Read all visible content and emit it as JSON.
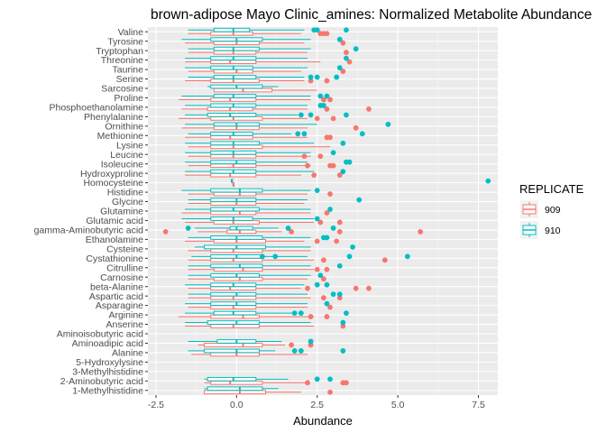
{
  "chart_data": {
    "type": "boxplot",
    "orientation": "horizontal",
    "title": "brown-adipose Mayo Clinic_amines: Normalized Metabolite Abundance",
    "xlabel": "Abundance",
    "ylabel": "",
    "xlim": [
      -2.75,
      8.1
    ],
    "xticks": [
      -2.5,
      0.0,
      2.5,
      5.0,
      7.5
    ],
    "xtick_labels": [
      "-2.5",
      "0.0",
      "2.5",
      "5.0",
      "7.5"
    ],
    "grid": true,
    "legend": {
      "title": "REPLICATE",
      "position": "right",
      "entries": [
        {
          "name": "909",
          "color": "#F8766D"
        },
        {
          "name": "910",
          "color": "#00BFC4"
        }
      ]
    },
    "categories": [
      "Valine",
      "Tyrosine",
      "Tryptophan",
      "Threonine",
      "Taurine",
      "Serine",
      "Sarcosine",
      "Proline",
      "Phosphoethanolamine",
      "Phenylalanine",
      "Ornithine",
      "Methionine",
      "Lysine",
      "Leucine",
      "Isoleucine",
      "Hydroxyproline",
      "Homocysteine",
      "Histidine",
      "Glycine",
      "Glutamine",
      "Glutamic acid",
      "gamma-Aminobutyric acid",
      "Ethanolamine",
      "Cysteine",
      "Cystathionine",
      "Citrulline",
      "Carnosine",
      "beta-Alanine",
      "Aspartic acid",
      "Asparagine",
      "Arginine",
      "Anserine",
      "Aminoisobutyric acid",
      "Aminoadipic acid",
      "Alanine",
      "5-Hydroxylysine",
      "3-Methylhistidine",
      "2-Aminobutyric acid",
      "1-Methylhistidine"
    ],
    "series": [
      {
        "name": "909",
        "color": "#F8766D",
        "boxes": [
          [
            -1.5,
            -0.8,
            -0.1,
            0.5,
            2.0
          ],
          [
            -1.6,
            -0.7,
            0.0,
            0.7,
            2.1
          ],
          [
            -1.5,
            -0.7,
            -0.1,
            0.6,
            2.2
          ],
          [
            -1.6,
            -0.8,
            -0.2,
            0.6,
            2.6
          ],
          [
            -1.5,
            -0.7,
            0.0,
            0.5,
            2.0
          ],
          [
            -1.6,
            -0.8,
            -0.1,
            0.7,
            2.1
          ],
          [
            -0.7,
            -0.7,
            0.2,
            1.1,
            2.5
          ],
          [
            -1.8,
            -0.8,
            -0.2,
            0.6,
            2.3
          ],
          [
            -1.7,
            -0.9,
            -0.2,
            0.5,
            2.2
          ],
          [
            -1.8,
            -0.8,
            -0.1,
            0.8,
            2.2
          ],
          [
            -1.7,
            -0.7,
            0.0,
            0.7,
            2.2
          ],
          [
            -1.6,
            -0.8,
            -0.2,
            0.5,
            2.2
          ],
          [
            -1.5,
            -0.8,
            -0.1,
            0.8,
            2.9
          ],
          [
            -1.5,
            -0.8,
            -0.1,
            0.6,
            2.3
          ],
          [
            -1.5,
            -0.8,
            -0.1,
            0.6,
            2.3
          ],
          [
            -1.6,
            -0.8,
            -0.2,
            0.6,
            2.0
          ],
          [
            -0.1,
            -0.1,
            -0.1,
            -0.1,
            -0.1
          ],
          [
            -1.5,
            -0.7,
            0.1,
            0.6,
            2.2
          ],
          [
            -1.5,
            -0.8,
            0.0,
            0.6,
            2.1
          ],
          [
            -1.7,
            -0.8,
            0.1,
            0.6,
            2.3
          ],
          [
            -1.6,
            -0.7,
            -0.1,
            0.7,
            2.4
          ],
          [
            -1.2,
            -0.3,
            0.1,
            0.6,
            1.4
          ],
          [
            -1.6,
            -0.7,
            0.0,
            0.9,
            2.1
          ],
          [
            -1.5,
            -0.8,
            -0.1,
            0.8,
            2.3
          ],
          [
            -1.5,
            -0.8,
            -0.1,
            0.8,
            2.4
          ],
          [
            -1.5,
            -0.7,
            0.2,
            0.8,
            2.4
          ],
          [
            -1.5,
            -0.7,
            0.1,
            0.8,
            2.2
          ],
          [
            -1.5,
            -0.8,
            -0.2,
            0.6,
            2.0
          ],
          [
            -1.5,
            -0.8,
            -0.1,
            0.6,
            2.3
          ],
          [
            -1.5,
            -0.8,
            -0.1,
            0.6,
            2.2
          ],
          [
            -1.8,
            -0.8,
            0.2,
            0.7,
            2.4
          ],
          [
            -1.6,
            -0.8,
            -0.1,
            0.7,
            2.4
          ],
          [
            null,
            null,
            null,
            null,
            null
          ],
          [
            -1.2,
            -1.0,
            0.2,
            0.8,
            1.5
          ],
          [
            -1.4,
            -0.8,
            0.0,
            0.7,
            2.2
          ],
          [
            null,
            null,
            null,
            null,
            null
          ],
          [
            null,
            null,
            null,
            null,
            null
          ],
          [
            -1.0,
            -0.8,
            -0.2,
            0.8,
            2.2
          ],
          [
            -1.0,
            -1.0,
            0.1,
            0.9,
            2.0
          ]
        ],
        "outliers": [
          [
            2.8,
            2.7,
            2.6
          ],
          [
            3.3
          ],
          [
            3.4
          ],
          [
            3.5
          ],
          [
            3.3
          ],
          [
            2.3,
            2.8
          ],
          [],
          [
            2.9,
            2.7
          ],
          [
            4.1,
            2.8
          ],
          [
            2.5,
            3.0
          ],
          [
            3.7
          ],
          [
            2.8,
            2.9
          ],
          [],
          [
            2.1,
            2.6
          ],
          [
            2.9,
            3.0,
            2.2
          ],
          [
            3.2,
            2.4
          ],
          [],
          [
            2.9
          ],
          [],
          [
            2.8
          ],
          [
            3.2,
            2.6
          ],
          [
            5.7,
            3.2,
            1.7,
            -2.2
          ],
          [
            3.1,
            2.5
          ],
          [],
          [
            4.6,
            2.7
          ],
          [
            2.8,
            2.5
          ],
          [
            2.7
          ],
          [
            3.7,
            4.1,
            2.2
          ],
          [
            3.2,
            2.7
          ],
          [
            2.9
          ],
          [
            2.8,
            2.3
          ],
          [
            3.3
          ],
          [],
          [
            2.3,
            1.7
          ],
          [],
          [],
          [],
          [
            3.4,
            3.3,
            2.2
          ],
          [
            2.9
          ]
        ]
      },
      {
        "name": "910",
        "color": "#00BFC4",
        "boxes": [
          [
            -1.5,
            -0.7,
            -0.1,
            0.4,
            2.1
          ],
          [
            -1.7,
            -0.8,
            0.0,
            0.8,
            2.3
          ],
          [
            -1.5,
            -0.7,
            -0.1,
            0.7,
            2.3
          ],
          [
            -1.6,
            -0.8,
            -0.1,
            0.6,
            2.2
          ],
          [
            -1.6,
            -0.8,
            -0.1,
            0.5,
            2.2
          ],
          [
            -1.5,
            -0.7,
            -0.1,
            0.6,
            2.1
          ],
          [
            -0.9,
            -0.8,
            0.0,
            0.8,
            1.3
          ],
          [
            -1.7,
            -0.7,
            -0.1,
            0.6,
            2.3
          ],
          [
            -1.6,
            -0.8,
            -0.1,
            0.6,
            2.2
          ],
          [
            -1.6,
            -0.9,
            -0.2,
            0.6,
            1.9
          ],
          [
            -1.6,
            -0.7,
            0.0,
            0.7,
            2.5
          ],
          [
            -1.5,
            -0.8,
            -0.1,
            0.5,
            1.7
          ],
          [
            -1.6,
            -0.8,
            -0.1,
            0.7,
            2.4
          ],
          [
            -1.6,
            -0.8,
            -0.1,
            0.6,
            2.3
          ],
          [
            -1.6,
            -0.8,
            0.0,
            0.6,
            2.2
          ],
          [
            -1.6,
            -0.8,
            -0.1,
            0.6,
            2.4
          ],
          [
            -0.15,
            -0.15,
            -0.15,
            -0.15,
            -0.15
          ],
          [
            -1.7,
            -0.8,
            0.1,
            0.8,
            2.3
          ],
          [
            -1.5,
            -0.8,
            0.0,
            0.6,
            2.2
          ],
          [
            -1.6,
            -0.8,
            -0.1,
            0.7,
            2.3
          ],
          [
            -1.7,
            -0.8,
            -0.1,
            0.5,
            2.4
          ],
          [
            -1.3,
            -0.2,
            0.0,
            0.5,
            1.3
          ],
          [
            -1.5,
            -0.8,
            0.0,
            0.8,
            2.3
          ],
          [
            -1.3,
            -1.0,
            0.0,
            0.9,
            2.3
          ],
          [
            -1.4,
            -0.8,
            0.0,
            0.8,
            2.2
          ],
          [
            -1.5,
            -0.8,
            0.1,
            0.8,
            2.3
          ],
          [
            -1.5,
            -0.8,
            0.0,
            0.7,
            2.3
          ],
          [
            -1.6,
            -0.8,
            -0.1,
            0.6,
            2.1
          ],
          [
            -1.5,
            -0.8,
            0.0,
            0.6,
            2.2
          ],
          [
            -1.6,
            -0.8,
            0.0,
            0.6,
            2.2
          ],
          [
            -1.6,
            -0.7,
            -0.1,
            0.6,
            1.8
          ],
          [
            -1.6,
            -0.9,
            0.0,
            0.7,
            2.3
          ],
          [
            null,
            null,
            null,
            null,
            null
          ],
          [
            -1.5,
            -0.6,
            0.0,
            0.6,
            1.4
          ],
          [
            -1.5,
            -1.0,
            0.0,
            0.7,
            1.2
          ],
          [
            null,
            null,
            null,
            null,
            null
          ],
          [
            null,
            null,
            null,
            null,
            null
          ],
          [
            -1.0,
            -0.9,
            -0.1,
            0.6,
            1.6
          ],
          [
            -1.0,
            -0.9,
            0.1,
            0.8,
            1.3
          ]
        ],
        "outliers": [
          [
            3.4,
            2.5,
            2.4
          ],
          [
            3.2
          ],
          [
            3.7
          ],
          [
            3.4
          ],
          [
            3.2
          ],
          [
            3.1,
            2.5,
            2.3
          ],
          [],
          [
            2.6,
            2.8
          ],
          [
            2.7,
            2.6
          ],
          [
            3.4,
            2.3,
            2.0
          ],
          [
            4.7
          ],
          [
            3.9,
            2.1,
            1.9
          ],
          [
            3.3
          ],
          [
            3.0
          ],
          [
            3.4,
            3.5
          ],
          [
            3.3
          ],
          [
            7.8
          ],
          [
            2.5
          ],
          [
            3.8
          ],
          [
            2.9
          ],
          [
            2.5
          ],
          [
            3.0,
            -1.5,
            1.6
          ],
          [
            2.7,
            2.8
          ],
          [
            3.6
          ],
          [
            5.3,
            3.5,
            0.8,
            1.2
          ],
          [
            3.2
          ],
          [
            2.6
          ],
          [
            2.5,
            2.8
          ],
          [
            3.0,
            3.2
          ],
          [
            2.8
          ],
          [
            3.4,
            2.0,
            1.8
          ],
          [
            3.3
          ],
          [],
          [
            2.3,
            2.3
          ],
          [
            1.8,
            2.0,
            3.3
          ],
          [],
          [],
          [
            2.9,
            2.5
          ],
          []
        ]
      }
    ]
  }
}
